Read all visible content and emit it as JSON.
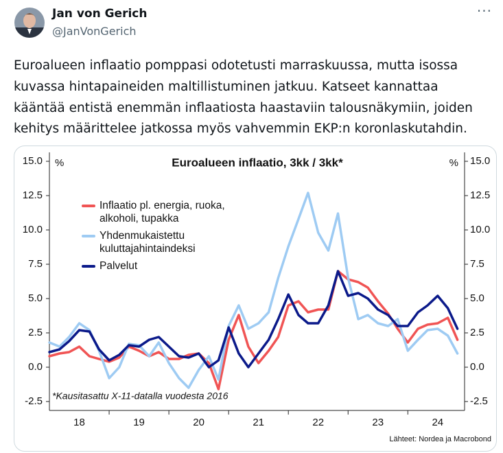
{
  "header": {
    "name": "Jan von Gerich",
    "handle": "@JanVonGerich"
  },
  "text_lines": [
    "Euroalueen inflaatio pomppasi odotetusti marraskuussa, mutta isossa",
    "kuvassa hintapaineiden maltillistuminen jatkuu. Katseet kannattaa",
    "kääntää entistä enemmän inflaatiosta haastaviin talousnäkymiin, joiden",
    "kehitys määrittelee jatkossa myös vahvemmin EKP:n koronlaskutahdin."
  ],
  "chart_data": {
    "type": "line",
    "title": "Euroalueen inflaatio, 3kk / 3kk*",
    "ylabel": "%",
    "y2label": "%",
    "footnote": "*Kausitasattu X-11-datalla vuodesta 2016",
    "source": "Lähteet: Nordea ja Macrobond",
    "x": [
      2018.0,
      2018.17,
      2018.33,
      2018.5,
      2018.67,
      2018.83,
      2019.0,
      2019.17,
      2019.33,
      2019.5,
      2019.67,
      2019.83,
      2020.0,
      2020.17,
      2020.33,
      2020.5,
      2020.67,
      2020.83,
      2021.0,
      2021.17,
      2021.33,
      2021.5,
      2021.67,
      2021.83,
      2022.0,
      2022.17,
      2022.33,
      2022.5,
      2022.67,
      2022.83,
      2023.0,
      2023.17,
      2023.33,
      2023.5,
      2023.67,
      2023.83,
      2024.0,
      2024.17,
      2024.33,
      2024.5,
      2024.67,
      2024.83
    ],
    "xlim": [
      2018.0,
      2024.95
    ],
    "xticks": [
      {
        "value": 2018.5,
        "label": "18"
      },
      {
        "value": 2019.5,
        "label": "19"
      },
      {
        "value": 2020.5,
        "label": "20"
      },
      {
        "value": 2021.5,
        "label": "21"
      },
      {
        "value": 2022.5,
        "label": "22"
      },
      {
        "value": 2023.5,
        "label": "23"
      },
      {
        "value": 2024.5,
        "label": "24"
      }
    ],
    "ylim": [
      -3.15,
      15.65
    ],
    "yticks": [
      {
        "value": 15,
        "label": "15.0"
      },
      12.5,
      {
        "value": 10,
        "label": "10.0"
      },
      7.5,
      {
        "value": 5,
        "label": "5.0"
      },
      2.5,
      {
        "value": 0,
        "label": "0.0"
      },
      -2.5
    ],
    "y2lim": [
      -3.15,
      15.65
    ],
    "y2ticks": [
      {
        "value": 15,
        "label": "15.0"
      },
      12.5,
      {
        "value": 10,
        "label": "10.0"
      },
      7.5,
      {
        "value": 5,
        "label": "5.0"
      },
      2.5,
      {
        "value": 0,
        "label": "0.0"
      },
      -2.5
    ],
    "grid": false,
    "series": [
      {
        "name": "Inflaatio pl. energia, ruoka, alkoholi, tupakka",
        "color": "#f05454",
        "values": [
          0.8,
          1.0,
          1.1,
          1.5,
          0.8,
          0.6,
          0.4,
          0.7,
          1.5,
          1.2,
          0.8,
          1.1,
          0.6,
          0.6,
          0.9,
          1.0,
          0.3,
          -1.6,
          2.0,
          3.8,
          1.5,
          0.3,
          1.2,
          2.2,
          4.5,
          4.8,
          4.0,
          4.2,
          4.2,
          7.0,
          6.4,
          6.2,
          5.8,
          4.8,
          3.9,
          2.8,
          1.8,
          2.8,
          3.1,
          3.2,
          3.6,
          2.0
        ]
      },
      {
        "name": "Yhdenmukaistettu kuluttajahintaindeksi",
        "color": "#9ecbf3",
        "values": [
          1.8,
          1.5,
          2.2,
          3.2,
          2.7,
          1.2,
          -0.8,
          0.0,
          1.7,
          1.6,
          0.8,
          1.8,
          0.3,
          -0.8,
          -1.5,
          -0.2,
          0.8,
          -0.9,
          3.0,
          4.5,
          2.8,
          3.2,
          4.0,
          6.5,
          8.8,
          10.8,
          12.7,
          9.8,
          8.5,
          11.2,
          6.5,
          3.5,
          3.8,
          3.2,
          3.0,
          3.5,
          1.2,
          2.0,
          2.7,
          2.8,
          2.3,
          1.0
        ]
      },
      {
        "name": "Palvelut",
        "color": "#0b1a8a",
        "values": [
          1.1,
          1.3,
          1.9,
          2.7,
          2.6,
          1.3,
          0.5,
          0.9,
          1.6,
          1.5,
          2.0,
          2.2,
          1.5,
          0.8,
          0.7,
          1.0,
          0.0,
          0.5,
          2.9,
          1.0,
          0.0,
          1.0,
          2.0,
          3.5,
          5.3,
          3.8,
          3.2,
          3.2,
          4.5,
          7.0,
          5.2,
          5.4,
          5.0,
          4.2,
          3.8,
          3.0,
          3.0,
          4.0,
          4.5,
          5.2,
          4.3,
          2.8
        ]
      }
    ]
  }
}
